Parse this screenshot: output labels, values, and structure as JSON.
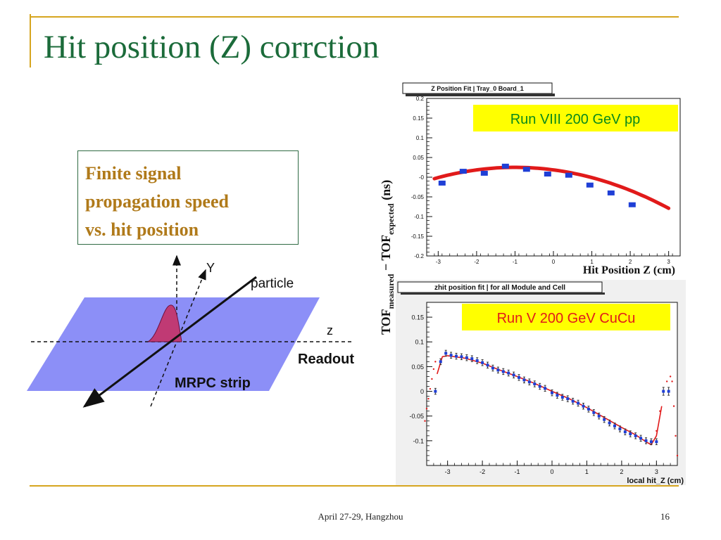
{
  "slide": {
    "title": "Hit position (Z) corrction",
    "box_lines": [
      "Finite signal",
      "propagation speed",
      "vs. hit position"
    ],
    "footer": "April 27-29, Hangzhou",
    "page_number": "16"
  },
  "diagram": {
    "axis_y_label": "Y",
    "axis_z_label": "z",
    "particle_label": "particle",
    "readout_label": "Readout",
    "strip_label": "MRPC strip"
  },
  "colors": {
    "title": "#1b6b3a",
    "accent": "#d6a51f",
    "box_text": "#b07a1a",
    "plane": "#8c8ff7",
    "pulse": "#c03a74",
    "fit_curve": "#e11a1a",
    "marker": "#1f3fd6",
    "label_bg": "#ffff00"
  },
  "chart_data": [
    {
      "type": "scatter",
      "title": "Z Position Fit | Tray_0 Board_1",
      "annotation": "Run VIII 200 GeV pp",
      "xlabel": "Hit Position Z (cm)",
      "ylabel_main": "TOF",
      "ylabel_sub_measured": "measured",
      "ylabel_minus": " − TOF",
      "ylabel_sub_expected": "expected",
      "ylabel_unit": " (ns)",
      "xlim": [
        -3.3,
        3.3
      ],
      "ylim": [
        -0.2,
        0.2
      ],
      "x_ticks": [
        -3,
        -2,
        -1,
        0,
        1,
        2,
        3
      ],
      "x_tick_labels": [
        "-3",
        "-2",
        "-1",
        "0",
        "1",
        "2",
        "3"
      ],
      "y_ticks": [
        -0.2,
        -0.15,
        -0.1,
        -0.05,
        0,
        0.05,
        0.1,
        0.15,
        0.2
      ],
      "y_tick_labels": [
        "-0.2",
        "-0.15",
        "-0.1",
        "-0.05",
        "-0",
        "0.05",
        "0.1",
        "0.15",
        "0.2"
      ],
      "points": {
        "x": [
          -2.9,
          -2.35,
          -1.8,
          -1.25,
          -0.7,
          -0.15,
          0.4,
          0.95,
          1.5,
          2.05
        ],
        "y": [
          -0.015,
          0.015,
          0.01,
          0.028,
          0.02,
          0.008,
          0.005,
          -0.02,
          -0.04,
          -0.07
        ]
      },
      "fit": {
        "a": 0.025,
        "x0": -1.0,
        "k": 0.0065,
        "xmin": -3.1,
        "xmax": 3.0
      }
    },
    {
      "type": "scatter",
      "title": "zhit position fit | for all Module and Cell",
      "annotation": "Run V 200 GeV CuCu",
      "xlabel": "local hit_Z (cm)",
      "xlim": [
        -3.6,
        3.6
      ],
      "ylim": [
        -0.15,
        0.18
      ],
      "x_ticks": [
        -3,
        -2,
        -1,
        0,
        1,
        2,
        3
      ],
      "x_tick_labels": [
        "-3",
        "-2",
        "-1",
        "0",
        "1",
        "2",
        "3"
      ],
      "y_ticks": [
        -0.1,
        -0.05,
        0,
        0.05,
        0.1,
        0.15
      ],
      "y_tick_labels": [
        "-0.1",
        "-0.05",
        "0",
        "0.05",
        "0.1",
        "0.15"
      ],
      "points": {
        "x": [
          -3.35,
          -3.2,
          -3.05,
          -2.9,
          -2.75,
          -2.6,
          -2.45,
          -2.3,
          -2.15,
          -2.0,
          -1.85,
          -1.7,
          -1.55,
          -1.4,
          -1.25,
          -1.1,
          -0.95,
          -0.8,
          -0.65,
          -0.5,
          -0.35,
          -0.2,
          0.0,
          0.15,
          0.3,
          0.45,
          0.6,
          0.75,
          0.9,
          1.05,
          1.2,
          1.35,
          1.5,
          1.65,
          1.8,
          1.95,
          2.1,
          2.25,
          2.4,
          2.55,
          2.7,
          2.85,
          3.0,
          3.2,
          3.35
        ],
        "y": [
          0.0,
          0.06,
          0.077,
          0.073,
          0.071,
          0.07,
          0.068,
          0.066,
          0.062,
          0.058,
          0.053,
          0.047,
          0.043,
          0.04,
          0.037,
          0.033,
          0.028,
          0.023,
          0.019,
          0.015,
          0.01,
          0.006,
          -0.003,
          -0.008,
          -0.012,
          -0.015,
          -0.02,
          -0.024,
          -0.03,
          -0.036,
          -0.043,
          -0.05,
          -0.057,
          -0.064,
          -0.07,
          -0.076,
          -0.082,
          -0.086,
          -0.09,
          -0.095,
          -0.1,
          -0.102,
          -0.102,
          0.0,
          0.0
        ],
        "err": [
          0.006,
          0.006,
          0.006,
          0.006,
          0.006,
          0.006,
          0.006,
          0.006,
          0.006,
          0.006,
          0.006,
          0.006,
          0.006,
          0.006,
          0.006,
          0.006,
          0.006,
          0.006,
          0.006,
          0.006,
          0.006,
          0.006,
          0.006,
          0.006,
          0.006,
          0.006,
          0.006,
          0.006,
          0.006,
          0.006,
          0.006,
          0.006,
          0.006,
          0.006,
          0.006,
          0.006,
          0.006,
          0.006,
          0.006,
          0.006,
          0.006,
          0.006,
          0.006,
          0.008,
          0.008
        ]
      },
      "fit_line": {
        "x": [
          -3.3,
          -3.15,
          -3.0,
          -2.5,
          -2.0,
          -1.5,
          -1.0,
          -0.5,
          0.0,
          0.5,
          1.0,
          1.5,
          2.0,
          2.4,
          2.7,
          2.85,
          3.0,
          3.15
        ],
        "y": [
          0.035,
          0.07,
          0.072,
          0.067,
          0.057,
          0.043,
          0.03,
          0.016,
          0.0,
          -0.015,
          -0.033,
          -0.053,
          -0.073,
          -0.088,
          -0.102,
          -0.108,
          -0.09,
          -0.03
        ]
      },
      "dotted_tails": {
        "left_x": [
          -3.65,
          -3.6,
          -3.55,
          -3.5,
          -3.45,
          -3.4,
          -3.35
        ],
        "left_y": [
          -0.06,
          -0.035,
          -0.015,
          0.005,
          0.025,
          0.045,
          0.06
        ],
        "right_x": [
          3.0,
          3.1,
          3.2,
          3.3,
          3.4,
          3.45,
          3.5,
          3.55,
          3.6
        ],
        "right_y": [
          -0.08,
          -0.04,
          0.0,
          0.02,
          0.03,
          0.02,
          -0.03,
          -0.09,
          -0.13
        ]
      }
    }
  ]
}
